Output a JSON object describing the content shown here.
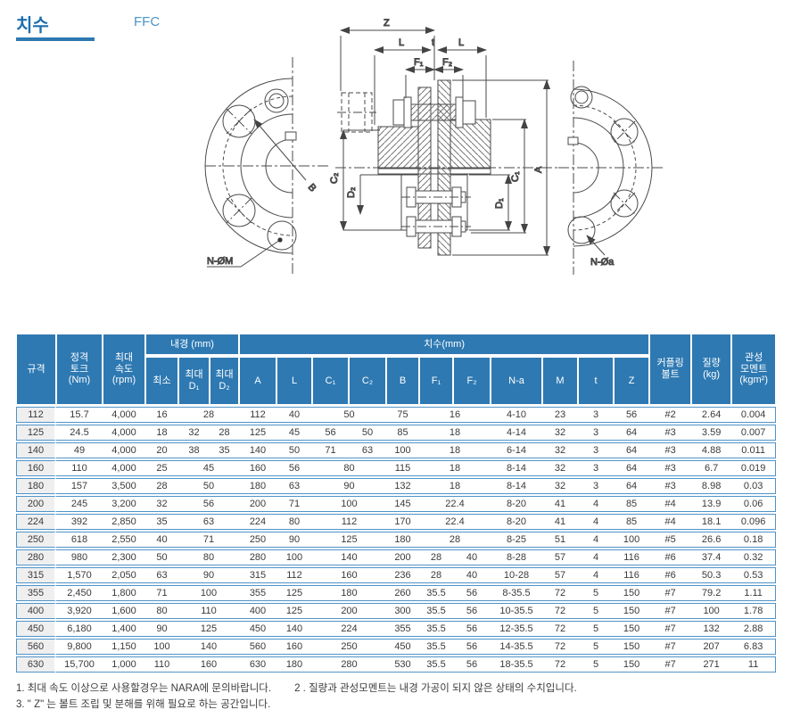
{
  "page": {
    "title": "치수",
    "subtitle": "FFC"
  },
  "drawing": {
    "labels": {
      "z": "Z",
      "l_left": "L",
      "t": "t",
      "l_right": "L",
      "f1": "F₁",
      "f2": "F₂",
      "c2": "C₂",
      "d2": "D₂",
      "d1": "D₁",
      "c1": "C₁",
      "a": "A",
      "b": "B",
      "n_om": "N-ØM",
      "n_oa": "N-Øa"
    }
  },
  "table": {
    "groups": {
      "spec": "규격",
      "torque": "정격\n토크\n(Nm)",
      "speed": "최대\n속도\n(rpm)",
      "bore": "내경 (mm)",
      "dims": "치수(mm)",
      "bolt": "커플링\n볼트",
      "mass": "질량\n(kg)",
      "inertia": "관성\n모멘트\n(kgm²)"
    },
    "sub": {
      "min": "최소",
      "maxd1": "최대\nD₁",
      "maxd2": "최대\nD₂",
      "a": "A",
      "l": "L",
      "c1": "C₁",
      "c2": "C₂",
      "b": "B",
      "f1": "F₁",
      "f2": "F₂",
      "na": "N-a",
      "m": "M",
      "t": "t",
      "z": "Z"
    },
    "rows": [
      [
        "112",
        "15.7",
        "4,000",
        "16",
        {
          "v": "28",
          "span": 2
        },
        "112",
        "40",
        {
          "v": "50",
          "span": 2
        },
        "75",
        {
          "v": "16",
          "span": 2
        },
        "4-10",
        "23",
        "3",
        "56",
        "#2",
        "2.64",
        "0.004"
      ],
      [
        "125",
        "24.5",
        "4,000",
        "18",
        "32",
        "28",
        "125",
        "45",
        "56",
        "50",
        "85",
        {
          "v": "18",
          "span": 2
        },
        "4-14",
        "32",
        "3",
        "64",
        "#3",
        "3.59",
        "0.007"
      ],
      [
        "140",
        "49",
        "4,000",
        "20",
        "38",
        "35",
        "140",
        "50",
        "71",
        "63",
        "100",
        {
          "v": "18",
          "span": 2
        },
        "6-14",
        "32",
        "3",
        "64",
        "#3",
        "4.88",
        "0.011"
      ],
      [
        "160",
        "110",
        "4,000",
        "25",
        {
          "v": "45",
          "span": 2
        },
        "160",
        "56",
        {
          "v": "80",
          "span": 2
        },
        "115",
        {
          "v": "18",
          "span": 2
        },
        "8-14",
        "32",
        "3",
        "64",
        "#3",
        "6.7",
        "0.019"
      ],
      [
        "180",
        "157",
        "3,500",
        "28",
        {
          "v": "50",
          "span": 2
        },
        "180",
        "63",
        {
          "v": "90",
          "span": 2
        },
        "132",
        {
          "v": "18",
          "span": 2
        },
        "8-14",
        "32",
        "3",
        "64",
        "#3",
        "8.98",
        "0.03"
      ],
      [
        "200",
        "245",
        "3,200",
        "32",
        {
          "v": "56",
          "span": 2
        },
        "200",
        "71",
        {
          "v": "100",
          "span": 2
        },
        "145",
        {
          "v": "22.4",
          "span": 2
        },
        "8-20",
        "41",
        "4",
        "85",
        "#4",
        "13.9",
        "0.06"
      ],
      [
        "224",
        "392",
        "2,850",
        "35",
        {
          "v": "63",
          "span": 2
        },
        "224",
        "80",
        {
          "v": "112",
          "span": 2
        },
        "170",
        {
          "v": "22.4",
          "span": 2
        },
        "8-20",
        "41",
        "4",
        "85",
        "#4",
        "18.1",
        "0.096"
      ],
      [
        "250",
        "618",
        "2,550",
        "40",
        {
          "v": "71",
          "span": 2
        },
        "250",
        "90",
        {
          "v": "125",
          "span": 2
        },
        "180",
        {
          "v": "28",
          "span": 2
        },
        "8-25",
        "51",
        "4",
        "100",
        "#5",
        "26.6",
        "0.18"
      ],
      [
        "280",
        "980",
        "2,300",
        "50",
        {
          "v": "80",
          "span": 2
        },
        "280",
        "100",
        {
          "v": "140",
          "span": 2
        },
        "200",
        "28",
        "40",
        "8-28",
        "57",
        "4",
        "116",
        "#6",
        "37.4",
        "0.32"
      ],
      [
        "315",
        "1,570",
        "2,050",
        "63",
        {
          "v": "90",
          "span": 2
        },
        "315",
        "112",
        {
          "v": "160",
          "span": 2
        },
        "236",
        "28",
        "40",
        "10-28",
        "57",
        "4",
        "116",
        "#6",
        "50.3",
        "0.53"
      ],
      [
        "355",
        "2,450",
        "1,800",
        "71",
        {
          "v": "100",
          "span": 2
        },
        "355",
        "125",
        {
          "v": "180",
          "span": 2
        },
        "260",
        "35.5",
        "56",
        "8-35.5",
        "72",
        "5",
        "150",
        "#7",
        "79.2",
        "1.11"
      ],
      [
        "400",
        "3,920",
        "1,600",
        "80",
        {
          "v": "110",
          "span": 2
        },
        "400",
        "125",
        {
          "v": "200",
          "span": 2
        },
        "300",
        "35.5",
        "56",
        "10-35.5",
        "72",
        "5",
        "150",
        "#7",
        "100",
        "1.78"
      ],
      [
        "450",
        "6,180",
        "1,400",
        "90",
        {
          "v": "125",
          "span": 2
        },
        "450",
        "140",
        {
          "v": "224",
          "span": 2
        },
        "355",
        "35.5",
        "56",
        "12-35.5",
        "72",
        "5",
        "150",
        "#7",
        "132",
        "2.88"
      ],
      [
        "560",
        "9,800",
        "1,150",
        "100",
        {
          "v": "140",
          "span": 2
        },
        "560",
        "160",
        {
          "v": "250",
          "span": 2
        },
        "450",
        "35.5",
        "56",
        "14-35.5",
        "72",
        "5",
        "150",
        "#7",
        "207",
        "6.83"
      ],
      [
        "630",
        "15,700",
        "1,000",
        "110",
        {
          "v": "160",
          "span": 2
        },
        "630",
        "180",
        {
          "v": "280",
          "span": 2
        },
        "530",
        "35.5",
        "56",
        "18-35.5",
        "72",
        "5",
        "150",
        "#7",
        "271",
        "11"
      ]
    ]
  },
  "notes": [
    "1. 최대 속도 이상으로 사용할경우는 NARA에 문의바랍니다.",
    "2 . 질량과 관성모멘트는 내경 가공이 되지 않은 상태의 수치입니다.",
    "3. \" Z\" 는 볼트 조립 및 분해를 위해 필요로 하는 공간입니다."
  ],
  "colors": {
    "header_bg": "#2e79b2",
    "row_line": "#4f94c9",
    "spec_col_bg": "#efefef",
    "title": "#1e6fad",
    "subtitle": "#4c94c9"
  }
}
